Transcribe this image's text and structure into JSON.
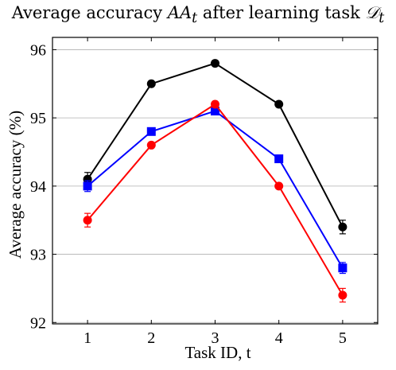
{
  "chart_data": {
    "type": "line",
    "title": {
      "prefix": "Average accuracy ",
      "math1": "AA",
      "math1_sub": "t",
      "middle": " after learning task ",
      "math2": "𝒟",
      "math2_sub": "t"
    },
    "xlabel": "Task ID, t",
    "ylabel": "Average accuracy (%)",
    "x": [
      1,
      2,
      3,
      4,
      5
    ],
    "x_ticks": [
      "1",
      "2",
      "3",
      "4",
      "5"
    ],
    "y_ticks": [
      "92",
      "93",
      "94",
      "95",
      "96"
    ],
    "xlim": [
      0.45,
      5.55
    ],
    "ylim": [
      91.98,
      96.18
    ],
    "grid": "horizontal",
    "legend": "none",
    "series": [
      {
        "color": "#000000",
        "marker": "circle",
        "values": [
          94.1,
          95.5,
          95.8,
          95.2,
          93.4
        ],
        "errors": [
          0.1,
          0.0,
          0.0,
          0.0,
          0.1
        ]
      },
      {
        "color": "#0000ff",
        "marker": "square",
        "values": [
          94.0,
          94.8,
          95.1,
          94.4,
          92.8
        ],
        "errors": [
          0.08,
          0.0,
          0.0,
          0.0,
          0.08
        ]
      },
      {
        "color": "#ff0000",
        "marker": "circle",
        "values": [
          93.5,
          94.6,
          95.2,
          94.0,
          92.4
        ],
        "errors": [
          0.1,
          0.0,
          0.0,
          0.0,
          0.1
        ]
      }
    ]
  }
}
